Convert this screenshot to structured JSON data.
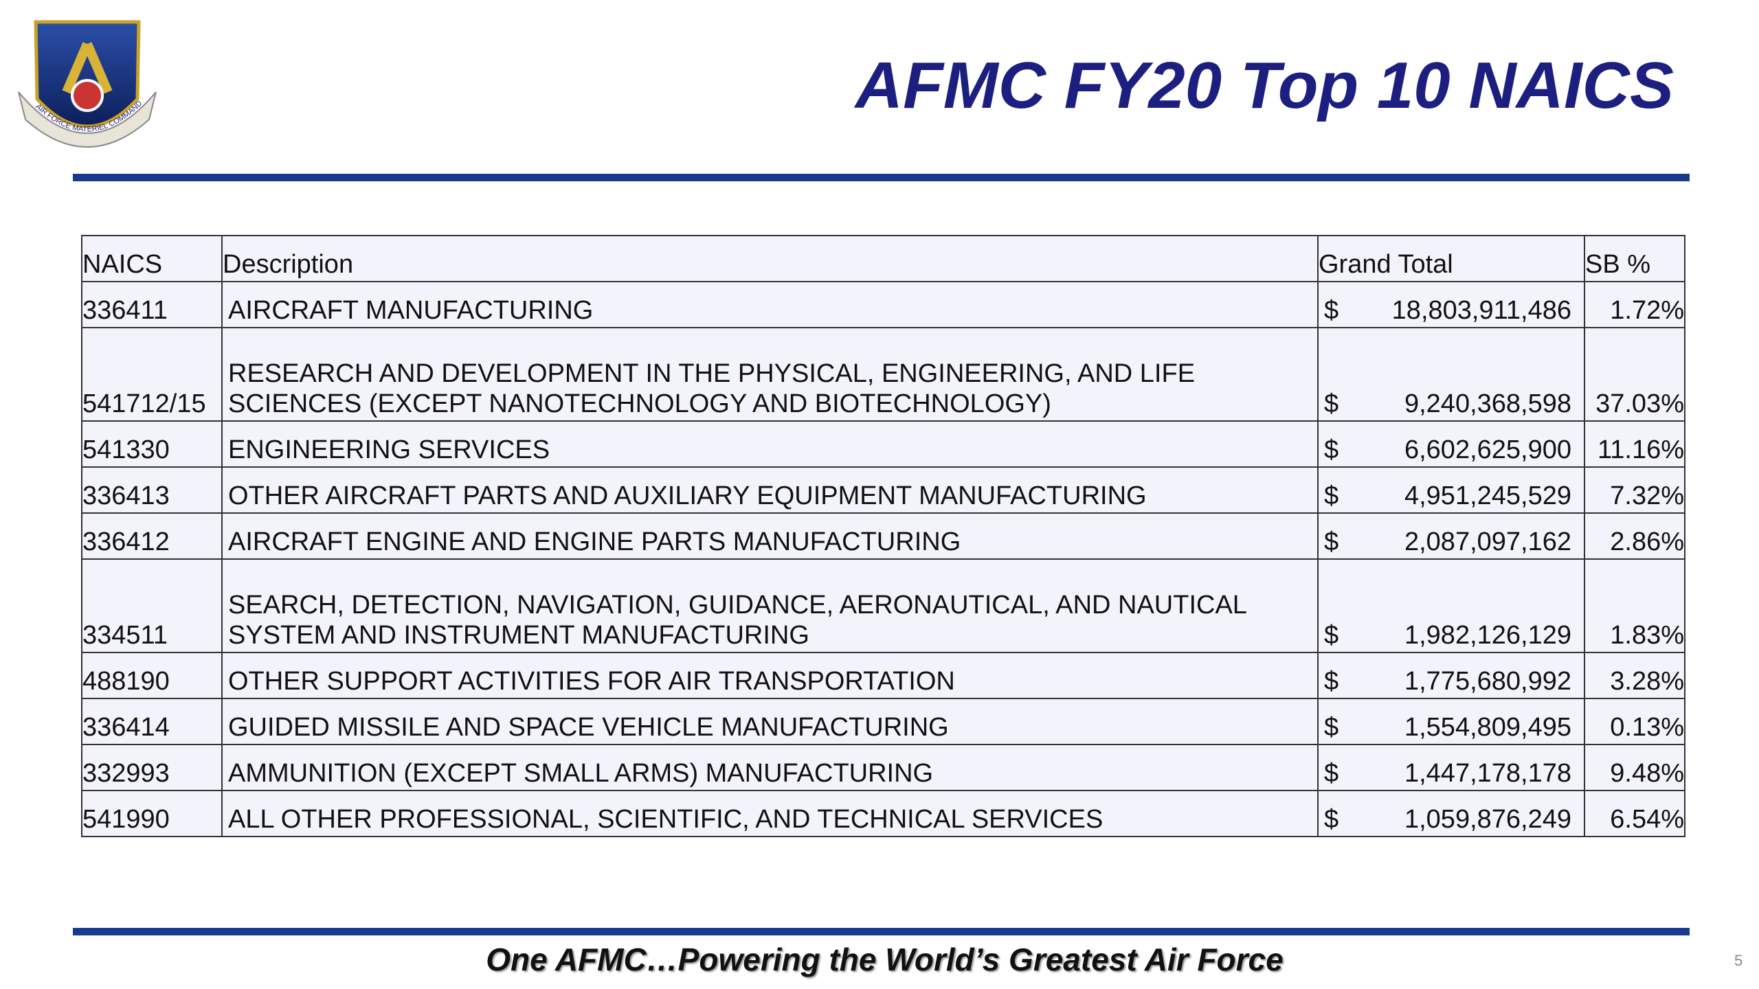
{
  "logo": {
    "text": "AIR FORCE MATERIEL COMMAND"
  },
  "header": {
    "title": "AFMC FY20 Top 10 NAICS"
  },
  "table": {
    "columns": [
      "NAICS",
      "Description",
      "Grand Total",
      "SB %"
    ],
    "rows": [
      {
        "naics": "336411",
        "description": [
          "AIRCRAFT MANUFACTURING"
        ],
        "currency": "$",
        "total": "18,803,911,486",
        "sb": "1.72%"
      },
      {
        "naics": "541712/15",
        "description": [
          "RESEARCH AND DEVELOPMENT IN THE PHYSICAL, ENGINEERING, AND LIFE",
          "SCIENCES (EXCEPT NANOTECHNOLOGY AND BIOTECHNOLOGY)"
        ],
        "currency": "$",
        "total": "9,240,368,598",
        "sb": "37.03%"
      },
      {
        "naics": "541330",
        "description": [
          "ENGINEERING SERVICES"
        ],
        "currency": "$",
        "total": "6,602,625,900",
        "sb": "11.16%"
      },
      {
        "naics": "336413",
        "description": [
          "OTHER AIRCRAFT PARTS AND AUXILIARY EQUIPMENT MANUFACTURING"
        ],
        "currency": "$",
        "total": "4,951,245,529",
        "sb": "7.32%"
      },
      {
        "naics": "336412",
        "description": [
          "AIRCRAFT ENGINE AND ENGINE PARTS MANUFACTURING"
        ],
        "currency": "$",
        "total": "2,087,097,162",
        "sb": "2.86%"
      },
      {
        "naics": "334511",
        "description": [
          "SEARCH, DETECTION, NAVIGATION, GUIDANCE, AERONAUTICAL, AND NAUTICAL",
          "SYSTEM AND INSTRUMENT MANUFACTURING"
        ],
        "currency": "$",
        "total": "1,982,126,129",
        "sb": "1.83%"
      },
      {
        "naics": "488190",
        "description": [
          "OTHER SUPPORT ACTIVITIES FOR AIR TRANSPORTATION"
        ],
        "currency": "$",
        "total": "1,775,680,992",
        "sb": "3.28%"
      },
      {
        "naics": "336414",
        "description": [
          "GUIDED MISSILE AND SPACE VEHICLE MANUFACTURING"
        ],
        "currency": "$",
        "total": "1,554,809,495",
        "sb": "0.13%"
      },
      {
        "naics": "332993",
        "description": [
          "AMMUNITION (EXCEPT SMALL ARMS) MANUFACTURING"
        ],
        "currency": "$",
        "total": "1,447,178,178",
        "sb": "9.48%"
      },
      {
        "naics": "541990",
        "description": [
          "ALL OTHER PROFESSIONAL, SCIENTIFIC, AND TECHNICAL SERVICES"
        ],
        "currency": "$",
        "total": "1,059,876,249",
        "sb": "6.54%"
      }
    ]
  },
  "footer": {
    "slogan": "One AFMC…Powering the World’s Greatest Air Force",
    "page": "5"
  }
}
